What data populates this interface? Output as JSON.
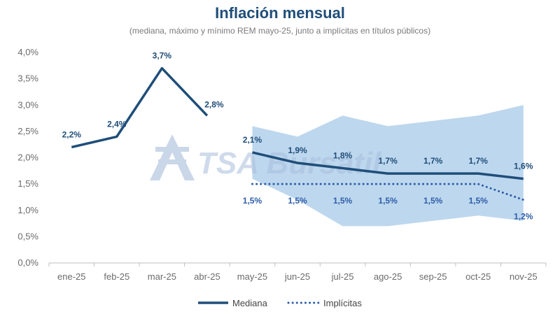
{
  "chart_data": {
    "type": "line",
    "title": "Inflación mensual",
    "subtitle": "(mediana, máximo y mínimo REM mayo-25, junto a implícitas en títulos públicos)",
    "categories": [
      "ene-25",
      "feb-25",
      "mar-25",
      "abr-25",
      "may-25",
      "jun-25",
      "jul-25",
      "ago-25",
      "sep-25",
      "oct-25",
      "nov-25"
    ],
    "y_ticks": [
      "0,0%",
      "0,5%",
      "1,0%",
      "1,5%",
      "2,0%",
      "2,5%",
      "3,0%",
      "3,5%",
      "4,0%"
    ],
    "ylim": [
      0,
      4.0
    ],
    "grid": false,
    "legend_position": "bottom",
    "series": [
      {
        "name": "Mediana",
        "role": "historical",
        "values": [
          2.2,
          2.4,
          3.7,
          2.8,
          null,
          null,
          null,
          null,
          null,
          null,
          null
        ],
        "labels": [
          "2,2%",
          "2,4%",
          "3,7%",
          "2,8%",
          null,
          null,
          null,
          null,
          null,
          null,
          null
        ]
      },
      {
        "name": "Mediana",
        "role": "forecast",
        "values": [
          null,
          null,
          null,
          null,
          2.1,
          1.9,
          1.8,
          1.7,
          1.7,
          1.7,
          1.6
        ],
        "labels": [
          null,
          null,
          null,
          null,
          "2,1%",
          "1,9%",
          "1,8%",
          "1,7%",
          "1,7%",
          "1,7%",
          "1,6%"
        ]
      },
      {
        "name": "Implícitas",
        "role": "implied",
        "values": [
          null,
          null,
          null,
          null,
          1.5,
          1.5,
          1.5,
          1.5,
          1.5,
          1.5,
          1.2
        ],
        "labels": [
          null,
          null,
          null,
          null,
          "1,5%",
          "1,5%",
          "1,5%",
          "1,5%",
          "1,5%",
          "1,5%",
          "1,2%"
        ]
      }
    ],
    "band": {
      "upper": [
        null,
        null,
        null,
        null,
        2.6,
        2.4,
        2.8,
        2.6,
        2.7,
        2.8,
        3.0
      ],
      "lower": [
        null,
        null,
        null,
        null,
        1.6,
        1.2,
        0.7,
        0.7,
        0.8,
        0.9,
        0.8
      ]
    },
    "colors": {
      "mediana": "#1f4e79",
      "implicitas": "#2e5eaa",
      "band": "#bdd7ee",
      "axis": "#bfbfbf",
      "tick_text": "#6b6b6b"
    },
    "legend": [
      {
        "label": "Mediana",
        "style": "solid"
      },
      {
        "label": "Implícitas",
        "style": "dotted"
      }
    ]
  },
  "watermark": {
    "text": "TSA Bursátil",
    "icon": "tsa-logo-icon"
  }
}
